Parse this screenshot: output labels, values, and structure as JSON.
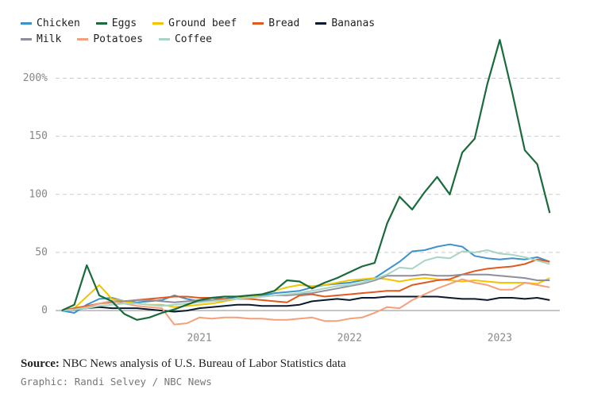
{
  "chart_data": {
    "type": "line",
    "legend": "top-left",
    "grid": true,
    "x": [
      2020.083,
      2020.167,
      2020.25,
      2020.333,
      2020.417,
      2020.5,
      2020.583,
      2020.667,
      2020.75,
      2020.833,
      2020.917,
      2021,
      2021.083,
      2021.167,
      2021.25,
      2021.333,
      2021.417,
      2021.5,
      2021.583,
      2021.667,
      2021.75,
      2021.833,
      2021.917,
      2022,
      2022.083,
      2022.167,
      2022.25,
      2022.333,
      2022.417,
      2022.5,
      2022.583,
      2022.667,
      2022.75,
      2022.833,
      2022.917,
      2023,
      2023.083,
      2023.167,
      2023.25,
      2023.333
    ],
    "xlim": [
      2020,
      2023.4
    ],
    "xticks": [
      2021,
      2022,
      2023
    ],
    "ylim": [
      -15,
      240
    ],
    "yticks": [
      0,
      50,
      100,
      150,
      {
        "value": 200,
        "label": "200%"
      }
    ],
    "series": [
      {
        "name": "Chicken",
        "color": "#3e92cc",
        "values": [
          0,
          -2,
          5,
          10,
          11,
          8,
          7,
          8,
          9,
          13,
          10,
          8,
          9,
          10,
          12,
          12,
          13,
          15,
          16,
          17,
          20,
          22,
          23,
          24,
          26,
          28,
          35,
          42,
          51,
          52,
          55,
          57,
          55,
          47,
          45,
          44,
          45,
          44,
          46,
          42
        ]
      },
      {
        "name": "Eggs",
        "color": "#1a6b3c",
        "values": [
          0,
          5,
          39,
          13,
          8,
          -3,
          -8,
          -6,
          -2,
          1,
          5,
          9,
          11,
          12,
          12,
          13,
          14,
          17,
          26,
          25,
          19,
          24,
          28,
          33,
          38,
          41,
          75,
          98,
          87,
          102,
          115,
          100,
          136,
          148,
          195,
          233,
          188,
          138,
          126,
          84
        ]
      },
      {
        "name": "Ground beef",
        "color": "#f2c500",
        "values": [
          0,
          2,
          12,
          22,
          10,
          8,
          6,
          5,
          5,
          3,
          4,
          5,
          6,
          8,
          10,
          12,
          14,
          17,
          20,
          22,
          21,
          22,
          24,
          26,
          27,
          28,
          27,
          25,
          27,
          28,
          27,
          26,
          25,
          26,
          25,
          24,
          24,
          24,
          23,
          28
        ]
      },
      {
        "name": "Bread",
        "color": "#e05a1e",
        "values": [
          0,
          2,
          4,
          6,
          7,
          8,
          9,
          10,
          11,
          12,
          12,
          11,
          11,
          10,
          10,
          10,
          9,
          8,
          7,
          13,
          14,
          12,
          13,
          14,
          15,
          16,
          17,
          17,
          22,
          24,
          26,
          27,
          31,
          34,
          36,
          37,
          38,
          40,
          44,
          42
        ]
      },
      {
        "name": "Bananas",
        "color": "#0a1a2e",
        "values": [
          0,
          1,
          2,
          3,
          2,
          2,
          2,
          1,
          0,
          -1,
          0,
          2,
          3,
          4,
          5,
          5,
          4,
          4,
          4,
          5,
          8,
          9,
          10,
          9,
          11,
          11,
          12,
          12,
          12,
          12,
          12,
          11,
          10,
          10,
          9,
          11,
          11,
          10,
          11,
          9
        ]
      },
      {
        "name": "Milk",
        "color": "#8e8e9a",
        "values": [
          0,
          1,
          3,
          6,
          8,
          8,
          9,
          9,
          8,
          7,
          8,
          9,
          9,
          9,
          10,
          11,
          12,
          13,
          13,
          14,
          15,
          17,
          19,
          21,
          23,
          26,
          30,
          30,
          30,
          31,
          30,
          30,
          31,
          31,
          31,
          30,
          29,
          28,
          26,
          26
        ]
      },
      {
        "name": "Potatoes",
        "color": "#f5a07a",
        "values": [
          0,
          1,
          3,
          6,
          8,
          6,
          4,
          3,
          2,
          -12,
          -11,
          -6,
          -7,
          -6,
          -6,
          -7,
          -7,
          -8,
          -8,
          -7,
          -6,
          -9,
          -9,
          -7,
          -6,
          -2,
          3,
          2,
          9,
          14,
          19,
          23,
          27,
          24,
          22,
          18,
          18,
          24,
          22,
          20
        ]
      },
      {
        "name": "Coffee",
        "color": "#a8d5c2",
        "values": [
          0,
          1,
          2,
          4,
          5,
          6,
          6,
          5,
          4,
          5,
          6,
          7,
          8,
          9,
          10,
          11,
          12,
          13,
          14,
          15,
          17,
          19,
          21,
          22,
          24,
          27,
          31,
          37,
          36,
          43,
          46,
          45,
          51,
          50,
          52,
          49,
          48,
          46,
          43,
          40
        ]
      }
    ],
    "source_label": "Source:",
    "source_text": "NBC News analysis of U.S. Bureau of Labor Statistics data",
    "credit": "Graphic: Randi Selvey / NBC News"
  }
}
